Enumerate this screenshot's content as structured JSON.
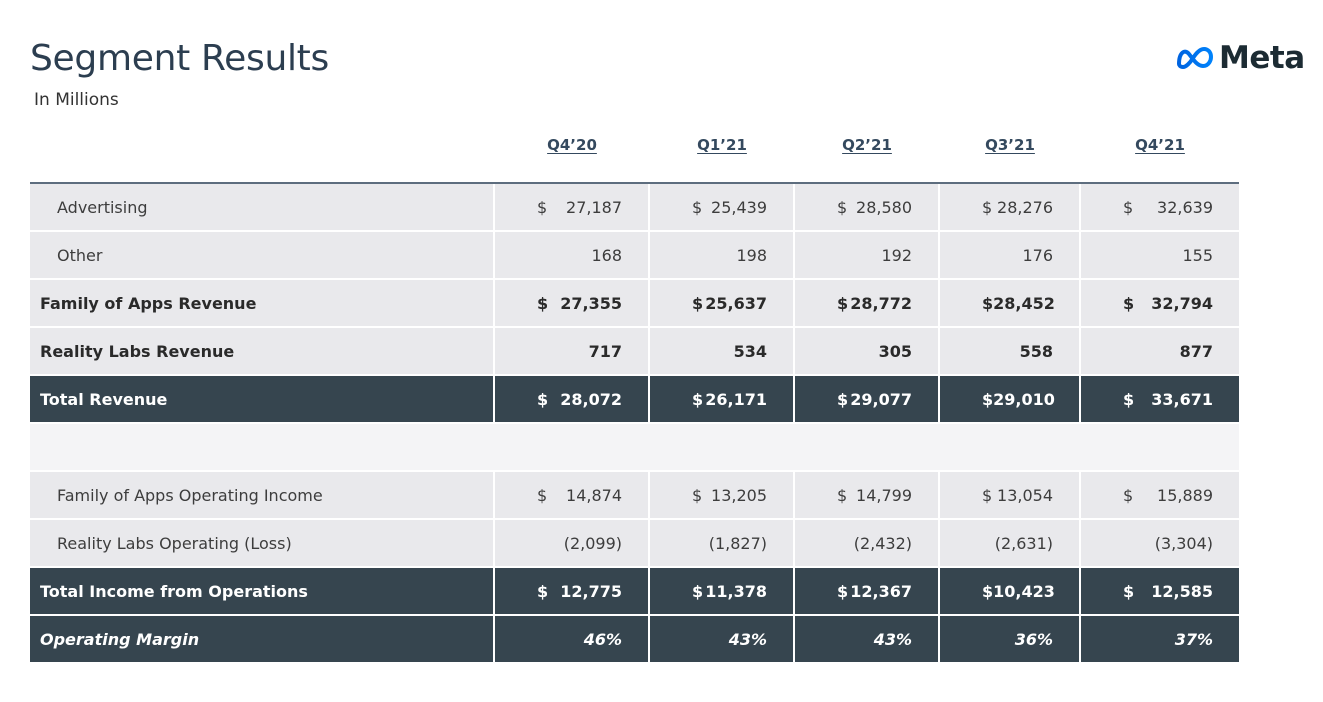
{
  "header": {
    "title": "Segment Results",
    "subtitle": "In Millions",
    "logo_text": "Meta"
  },
  "columns": [
    "Q4’20",
    "Q1’21",
    "Q2’21",
    "Q3’21",
    "Q4’21"
  ],
  "rows": [
    {
      "label": "Advertising",
      "currency": "$",
      "values": [
        "27,187",
        "25,439",
        "28,580",
        "28,276",
        "32,639"
      ]
    },
    {
      "label": "Other",
      "currency": "",
      "values": [
        "168",
        "198",
        "192",
        "176",
        "155"
      ]
    },
    {
      "label": "Family of Apps Revenue",
      "currency": "$",
      "values": [
        "27,355",
        "25,637",
        "28,772",
        "28,452",
        "32,794"
      ]
    },
    {
      "label": "Reality Labs Revenue",
      "currency": "",
      "values": [
        "717",
        "534",
        "305",
        "558",
        "877"
      ]
    },
    {
      "label": "Total Revenue",
      "currency": "$",
      "values": [
        "28,072",
        "26,171",
        "29,077",
        "29,010",
        "33,671"
      ]
    },
    {
      "label": "",
      "currency": "",
      "values": [
        "",
        "",
        "",
        "",
        ""
      ]
    },
    {
      "label": "Family of Apps Operating Income",
      "currency": "$",
      "values": [
        "14,874",
        "13,205",
        "14,799",
        "13,054",
        "15,889"
      ]
    },
    {
      "label": "Reality Labs Operating (Loss)",
      "currency": "",
      "values": [
        "(2,099)",
        "(1,827)",
        "(2,432)",
        "(2,631)",
        "(3,304)"
      ]
    },
    {
      "label": "Total Income from Operations",
      "currency": "$",
      "values": [
        "12,775",
        "11,378",
        "12,367",
        "10,423",
        "12,585"
      ]
    },
    {
      "label": "Operating Margin",
      "currency": "",
      "values": [
        "46%",
        "43%",
        "43%",
        "36%",
        "37%"
      ]
    }
  ],
  "colors": {
    "dark_row": "#36454f",
    "light_row": "#e9e9ec",
    "title": "#2c3e50",
    "logo_blue": "#0668e1"
  }
}
